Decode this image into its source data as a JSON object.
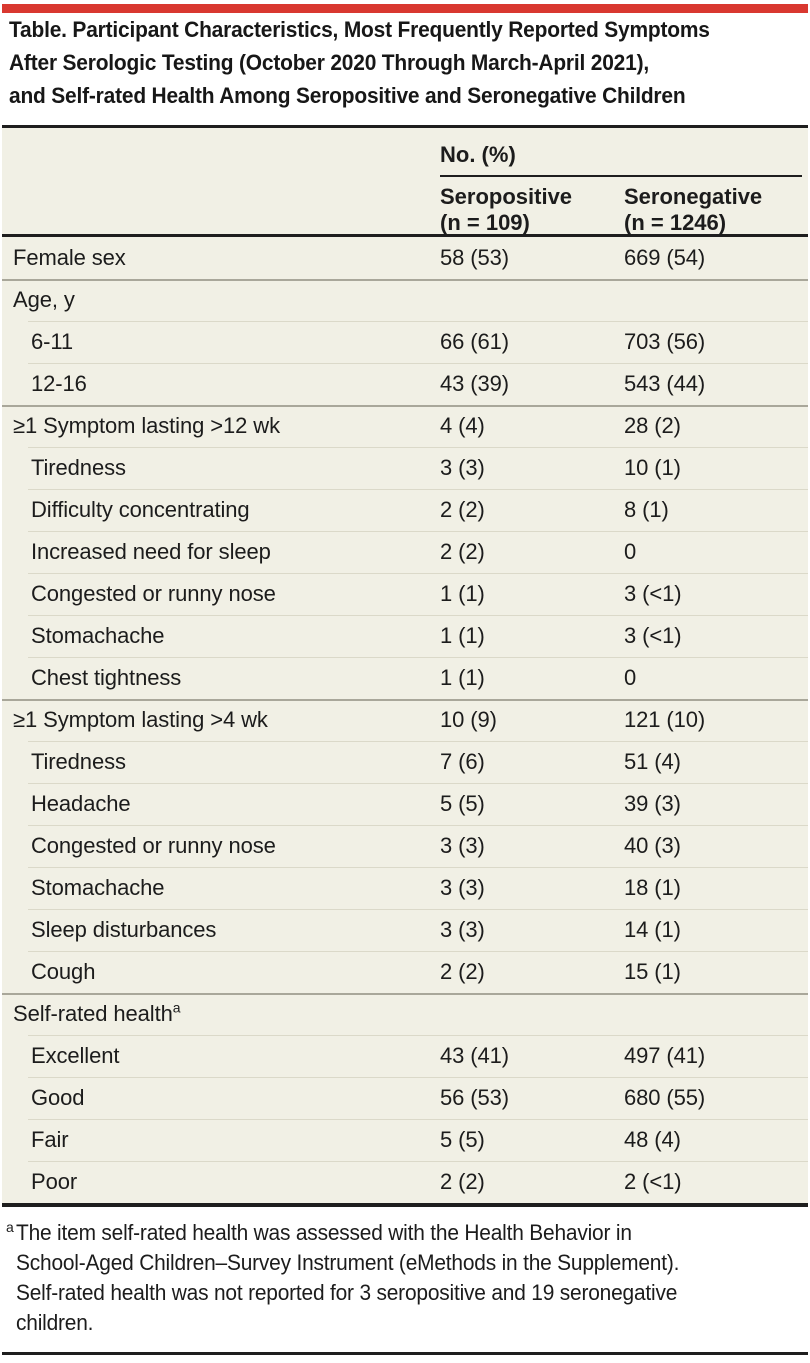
{
  "colors": {
    "accent_red": "#d93830",
    "table_background": "#f1f0e5",
    "section_divider": "#a9a79a",
    "row_divider": "#dbd9c9",
    "rule_black": "#1e1e1e"
  },
  "title": {
    "lines": [
      "Table. Participant Characteristics, Most Frequently Reported Symptoms",
      "After Serologic Testing (October 2020 Through March-April 2021),",
      "and Self-rated Health Among Seropositive and Seronegative Children"
    ]
  },
  "header": {
    "group_label": "No. (%)",
    "columns": [
      {
        "line1": "Seropositive",
        "line2": "(n = 109)"
      },
      {
        "line1": "Seronegative",
        "line2": "(n = 1246)"
      }
    ]
  },
  "table": {
    "rows": [
      {
        "label": "Female sex",
        "seropositive": "58 (53)",
        "seronegative": "669 (54)",
        "first": true
      },
      {
        "label": "Age, y",
        "seropositive": "",
        "seronegative": "",
        "section": true
      },
      {
        "label": "6-11",
        "seropositive": "66 (61)",
        "seronegative": "703 (56)",
        "indent": true
      },
      {
        "label": "12-16",
        "seropositive": "43 (39)",
        "seronegative": "543 (44)",
        "indent": true
      },
      {
        "label": "≥1 Symptom lasting >12 wk",
        "seropositive": "4 (4)",
        "seronegative": "28 (2)",
        "section": true
      },
      {
        "label": "Tiredness",
        "seropositive": "3 (3)",
        "seronegative": "10 (1)",
        "indent": true
      },
      {
        "label": "Difficulty concentrating",
        "seropositive": "2 (2)",
        "seronegative": "8 (1)",
        "indent": true
      },
      {
        "label": "Increased need for sleep",
        "seropositive": "2 (2)",
        "seronegative": "0",
        "indent": true
      },
      {
        "label": "Congested or runny nose",
        "seropositive": "1 (1)",
        "seronegative": "3 (<1)",
        "indent": true
      },
      {
        "label": "Stomachache",
        "seropositive": "1 (1)",
        "seronegative": "3 (<1)",
        "indent": true
      },
      {
        "label": "Chest tightness",
        "seropositive": "1 (1)",
        "seronegative": "0",
        "indent": true
      },
      {
        "label": "≥1 Symptom lasting >4 wk",
        "seropositive": "10 (9)",
        "seronegative": "121 (10)",
        "section": true
      },
      {
        "label": "Tiredness",
        "seropositive": "7 (6)",
        "seronegative": "51 (4)",
        "indent": true
      },
      {
        "label": "Headache",
        "seropositive": "5 (5)",
        "seronegative": "39 (3)",
        "indent": true
      },
      {
        "label": "Congested or runny nose",
        "seropositive": "3 (3)",
        "seronegative": "40 (3)",
        "indent": true
      },
      {
        "label": "Stomachache",
        "seropositive": "3 (3)",
        "seronegative": "18 (1)",
        "indent": true
      },
      {
        "label": "Sleep disturbances",
        "seropositive": "3 (3)",
        "seronegative": "14 (1)",
        "indent": true
      },
      {
        "label": "Cough",
        "seropositive": "2 (2)",
        "seronegative": "15 (1)",
        "indent": true
      },
      {
        "label": "Self-rated health",
        "sup": "a",
        "seropositive": "",
        "seronegative": "",
        "section": true
      },
      {
        "label": "Excellent",
        "seropositive": "43 (41)",
        "seronegative": "497 (41)",
        "indent": true
      },
      {
        "label": "Good",
        "seropositive": "56 (53)",
        "seronegative": "680 (55)",
        "indent": true
      },
      {
        "label": "Fair",
        "seropositive": "5 (5)",
        "seronegative": "48 (4)",
        "indent": true
      },
      {
        "label": "Poor",
        "seropositive": "2 (2)",
        "seronegative": "2 (<1)",
        "indent": true
      }
    ]
  },
  "footnote": {
    "marker": "a",
    "lines": [
      "The item self-rated health was assessed with the Health Behavior in",
      "School-Aged Children–Survey Instrument (eMethods in the Supplement).",
      "Self-rated health was not reported for 3 seropositive and 19 seronegative",
      "children."
    ]
  }
}
